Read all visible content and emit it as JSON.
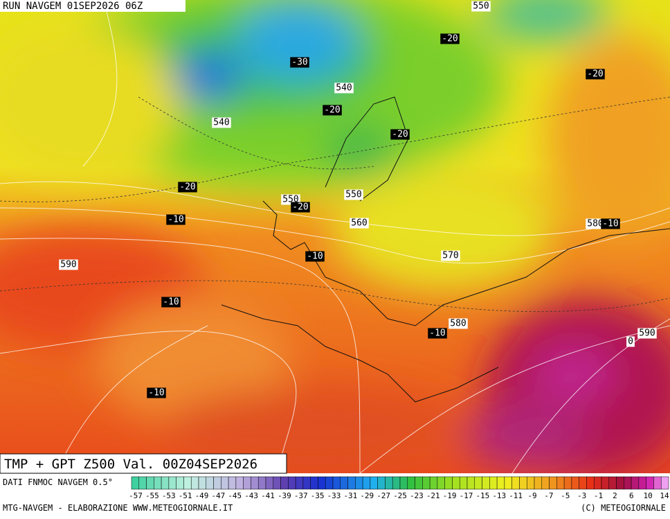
{
  "header": {
    "run": "RUN NAVGEM 01SEP2026 06Z",
    "product": "TMP + GPT Z500 Val. 00Z04SEP2026"
  },
  "map": {
    "labels": [
      "550",
      "-20",
      "-30",
      "-20",
      "540",
      "-20",
      "540",
      "-20",
      "-20",
      "550",
      "550",
      "-20",
      "-10",
      "560",
      "580",
      "-10",
      "-10",
      "570",
      "590",
      "-10",
      "580",
      "-10",
      "590",
      "0",
      "-10"
    ]
  },
  "legend": {
    "source": "DATI FNMOC NAVGEM 0.5°",
    "labels": [
      "-57",
      "-55",
      "-53",
      "-51",
      "-49",
      "-47",
      "-45",
      "-43",
      "-41",
      "-39",
      "-37",
      "-35",
      "-33",
      "-31",
      "-29",
      "-27",
      "-25",
      "-23",
      "-21",
      "-19",
      "-17",
      "-15",
      "-13",
      "-11",
      "-9",
      "-7",
      "-5",
      "-3",
      "-1",
      "2",
      "6",
      "10",
      "14"
    ]
  },
  "footer": {
    "left": "MTG-NAVGEM - ELABORAZIONE WWW.METEOGIORNALE.IT",
    "right": "(C) METEOGIORNALE"
  }
}
